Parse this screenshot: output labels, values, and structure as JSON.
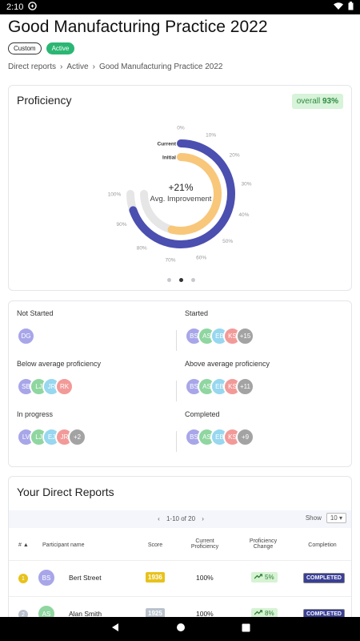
{
  "status_bar": {
    "time": "2:10"
  },
  "page": {
    "title": "Good Manufacturing Practice 2022",
    "badges": [
      "Custom",
      "Active"
    ]
  },
  "breadcrumb": [
    "Direct reports",
    "Active",
    "Good Manufacturing Practice 2022"
  ],
  "proficiency": {
    "title": "Proficiency",
    "overall_label": "overall",
    "overall_value": "93%",
    "center_value": "+21%",
    "center_label": "Avg. Improvement",
    "legend_current": "Current",
    "legend_initial": "Initial",
    "tick_labels": [
      "0%",
      "10%",
      "20%",
      "30%",
      "40%",
      "50%",
      "60%",
      "70%",
      "80%",
      "90%",
      "100%"
    ],
    "current_fraction": 0.93,
    "initial_fraction": 0.72,
    "colors": {
      "current": "#4b4fb0",
      "initial": "#f9c77a",
      "track": "#e6e6e6",
      "overall_bg": "#d7f3d9"
    },
    "pager_dots": 3,
    "active_dot": 1
  },
  "groups": [
    {
      "label": "Not Started",
      "avatars": [
        {
          "initials": "DG",
          "color": "#a8a6e9"
        }
      ]
    },
    {
      "label": "Started",
      "avatars": [
        {
          "initials": "BS",
          "color": "#a8a6e9"
        },
        {
          "initials": "AS",
          "color": "#8fd6a0"
        },
        {
          "initials": "EB",
          "color": "#97d7ef"
        },
        {
          "initials": "KS",
          "color": "#f29a98"
        },
        {
          "initials": "+15",
          "color": "#a3a3a3"
        }
      ]
    },
    {
      "label": "Below average proficiency",
      "avatars": [
        {
          "initials": "SB",
          "color": "#a8a6e9"
        },
        {
          "initials": "LJ",
          "color": "#8fd6a0"
        },
        {
          "initials": "JR",
          "color": "#97d7ef"
        },
        {
          "initials": "RK",
          "color": "#f29a98"
        }
      ]
    },
    {
      "label": "Above average proficiency",
      "avatars": [
        {
          "initials": "BS",
          "color": "#a8a6e9"
        },
        {
          "initials": "AS",
          "color": "#8fd6a0"
        },
        {
          "initials": "EB",
          "color": "#97d7ef"
        },
        {
          "initials": "KS",
          "color": "#f29a98"
        },
        {
          "initials": "+11",
          "color": "#a3a3a3"
        }
      ]
    },
    {
      "label": "In progress",
      "avatars": [
        {
          "initials": "LV",
          "color": "#a8a6e9"
        },
        {
          "initials": "LJ",
          "color": "#8fd6a0"
        },
        {
          "initials": "EJ",
          "color": "#97d7ef"
        },
        {
          "initials": "JR",
          "color": "#f29a98"
        },
        {
          "initials": "+2",
          "color": "#a3a3a3"
        }
      ]
    },
    {
      "label": "Completed",
      "avatars": [
        {
          "initials": "BS",
          "color": "#a8a6e9"
        },
        {
          "initials": "AS",
          "color": "#8fd6a0"
        },
        {
          "initials": "EB",
          "color": "#97d7ef"
        },
        {
          "initials": "KS",
          "color": "#f29a98"
        },
        {
          "initials": "+9",
          "color": "#a3a3a3"
        }
      ]
    }
  ],
  "reports": {
    "title": "Your Direct Reports",
    "pagination": "1-10 of 20",
    "show_label": "Show",
    "show_value": "10",
    "columns": [
      "#",
      "Participant name",
      "Score",
      "Current Proficiency",
      "Proficiency Change",
      "Completion"
    ],
    "rows": [
      {
        "rank": "1",
        "rank_color": "#e8c21c",
        "initials": "BS",
        "avatar_color": "#a8a6e9",
        "name": "Bert Street",
        "score": "1936",
        "score_color": "#e8c21c",
        "proficiency": "100%",
        "change": "5%",
        "completion": "COMPLETED"
      },
      {
        "rank": "2",
        "rank_color": "#b9c2cc",
        "initials": "AS",
        "avatar_color": "#8fd6a0",
        "name": "Alan Smith",
        "score": "1925",
        "score_color": "#b9c2cc",
        "proficiency": "100%",
        "change": "8%",
        "completion": "COMPLETED"
      }
    ]
  }
}
